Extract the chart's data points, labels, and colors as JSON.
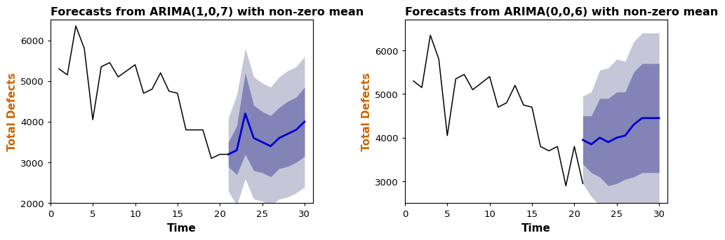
{
  "title1": "Forecasts from ARIMA(1,0,7) with non-zero mean",
  "title2": "Forecasts from ARIMA(0,0,6) with non-zero mean",
  "xlabel": "Time",
  "ylabel": "Total Defects",
  "ylabel_color": "#cc6600",
  "background_color": "#ffffff",
  "historical_x": [
    1,
    2,
    3,
    4,
    5,
    6,
    7,
    8,
    9,
    10,
    11,
    12,
    13,
    14,
    15,
    16,
    17,
    18,
    19,
    20,
    21
  ],
  "historical_y1": [
    5300,
    5150,
    6350,
    5800,
    4050,
    5350,
    5450,
    5100,
    5250,
    5400,
    4700,
    4800,
    5200,
    4750,
    4700,
    3800,
    3800,
    3800,
    3100,
    3200,
    3200
  ],
  "historical_y2": [
    5300,
    5150,
    6350,
    5800,
    4050,
    5350,
    5450,
    5100,
    5250,
    5400,
    4700,
    4800,
    5200,
    4750,
    4700,
    3800,
    3700,
    3800,
    2900,
    3800,
    2950
  ],
  "forecast_x1": [
    21,
    22,
    23,
    24,
    25,
    26,
    27,
    28,
    29,
    30
  ],
  "forecast_mean1": [
    3200,
    3300,
    4200,
    3600,
    3500,
    3400,
    3600,
    3700,
    3800,
    4000
  ],
  "forecast_lo80_1": [
    2900,
    2700,
    3200,
    2800,
    2750,
    2650,
    2850,
    2900,
    3000,
    3150
  ],
  "forecast_hi80_1": [
    3500,
    3900,
    5200,
    4400,
    4250,
    4150,
    4350,
    4500,
    4600,
    4850
  ],
  "forecast_lo95_1": [
    2300,
    1950,
    2600,
    2100,
    2050,
    1950,
    2100,
    2150,
    2250,
    2400
  ],
  "forecast_hi95_1": [
    4100,
    4650,
    5800,
    5100,
    4950,
    4850,
    5100,
    5250,
    5350,
    5600
  ],
  "forecast_x2": [
    21,
    22,
    23,
    24,
    25,
    26,
    27,
    28,
    29,
    30
  ],
  "forecast_mean2": [
    3950,
    3850,
    4000,
    3900,
    4000,
    4050,
    4300,
    4450,
    4450,
    4450
  ],
  "forecast_lo80_2": [
    3400,
    3200,
    3100,
    2900,
    2950,
    3050,
    3100,
    3200,
    3200,
    3200
  ],
  "forecast_hi80_2": [
    4500,
    4500,
    4900,
    4900,
    5050,
    5050,
    5500,
    5700,
    5700,
    5700
  ],
  "forecast_lo95_2": [
    2950,
    2650,
    2450,
    2200,
    2200,
    2350,
    2400,
    2500,
    2500,
    2500
  ],
  "forecast_hi95_2": [
    4950,
    5050,
    5550,
    5600,
    5800,
    5750,
    6200,
    6400,
    6400,
    6400
  ],
  "ylim1": [
    2000,
    6500
  ],
  "ylim2": [
    2500,
    6700
  ],
  "xlim": [
    0,
    31
  ],
  "yticks1": [
    2000,
    3000,
    4000,
    5000,
    6000
  ],
  "yticks2": [
    3000,
    4000,
    5000,
    6000
  ],
  "xticks": [
    0,
    5,
    10,
    15,
    20,
    25,
    30
  ],
  "ci80_color": "#8284b8",
  "ci95_color": "#c5c6d8",
  "forecast_line_color": "#0000cc",
  "historical_line_color": "#000000",
  "title_fontsize": 11.5,
  "axis_label_fontsize": 11,
  "tick_fontsize": 9.5
}
